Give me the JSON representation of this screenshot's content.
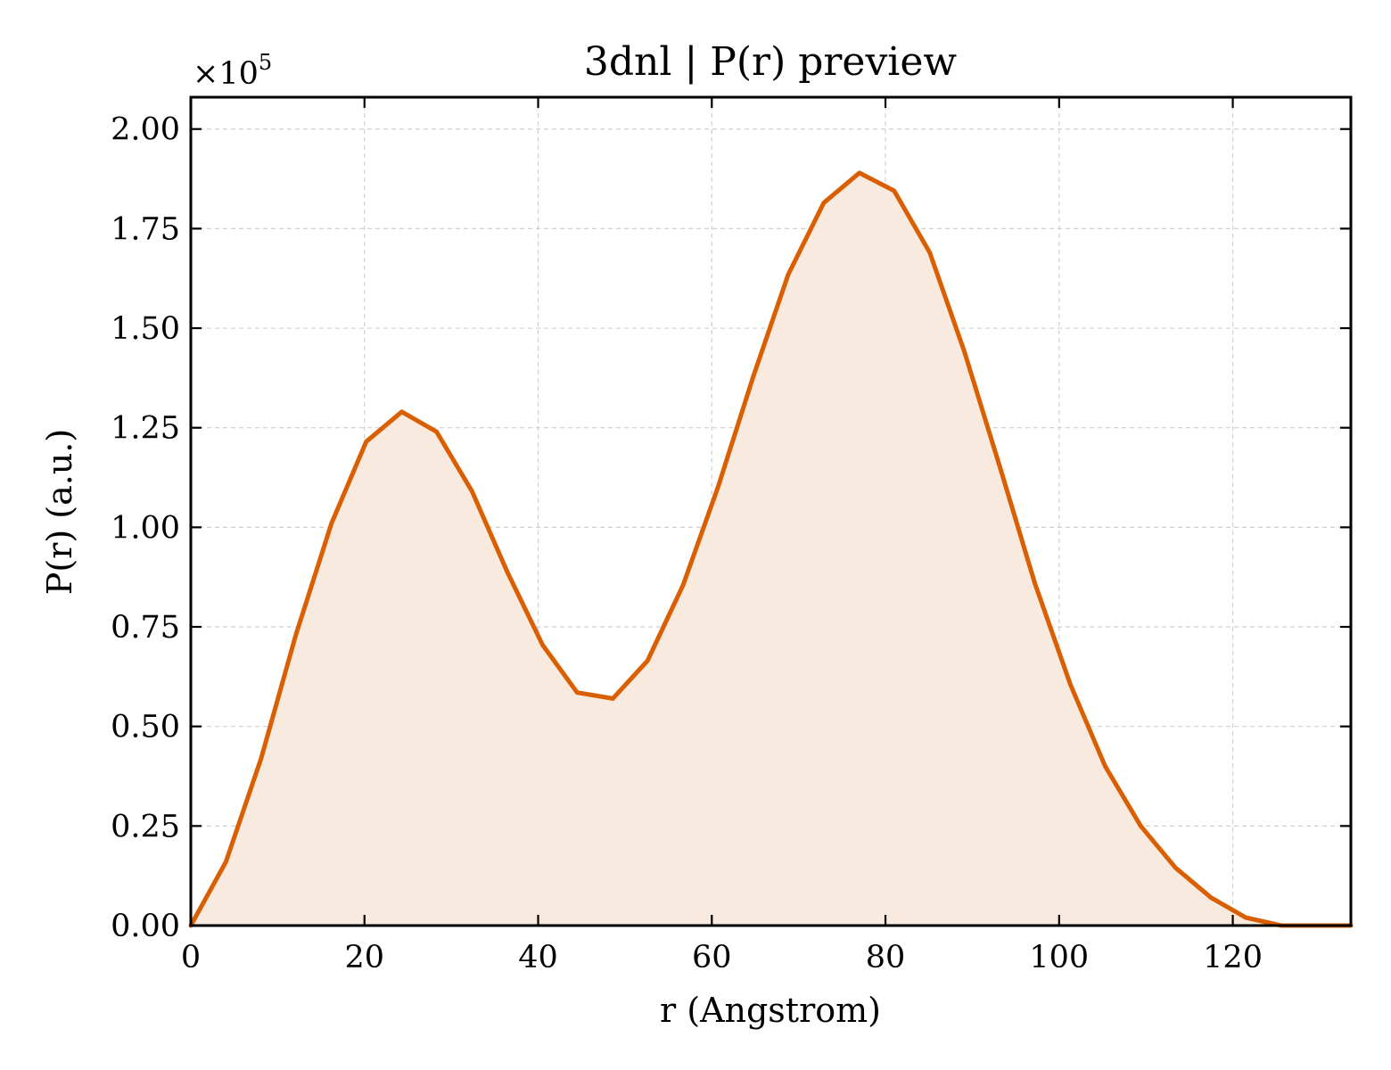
{
  "chart_data": {
    "type": "area",
    "title": "3dnl | P(r) preview",
    "xlabel": "r (Angstrom)",
    "ylabel": "P(r) (a.u.)",
    "y_multiplier": "×10",
    "y_multiplier_exponent": "5",
    "xlim": [
      0,
      133.6
    ],
    "ylim": [
      0,
      2.08
    ],
    "x_ticks": [
      0,
      20,
      40,
      60,
      80,
      100,
      120
    ],
    "x_tick_labels": [
      "0",
      "20",
      "40",
      "60",
      "80",
      "100",
      "120"
    ],
    "y_ticks": [
      0,
      0.25,
      0.5,
      0.75,
      1.0,
      1.25,
      1.5,
      1.75,
      2.0
    ],
    "y_tick_labels": [
      "0.00",
      "0.25",
      "0.50",
      "0.75",
      "1.00",
      "1.25",
      "1.50",
      "1.75",
      "2.00"
    ],
    "grid": true,
    "line_color": "#d95f02",
    "fill_color": "#f9eadf",
    "series": [
      {
        "x": [
          0,
          4.05,
          8.1,
          12.1,
          16.2,
          20.2,
          24.3,
          28.3,
          32.4,
          36.4,
          40.5,
          44.5,
          48.6,
          52.6,
          56.7,
          60.7,
          64.8,
          68.8,
          72.9,
          77.0,
          81.0,
          85.1,
          89.1,
          93.2,
          97.2,
          101.3,
          105.3,
          109.4,
          113.4,
          117.5,
          121.5,
          125.6,
          129.6,
          133.6
        ],
        "y": [
          0.0,
          0.16,
          0.42,
          0.73,
          1.01,
          1.215,
          1.29,
          1.24,
          1.09,
          0.89,
          0.705,
          0.585,
          0.57,
          0.665,
          0.855,
          1.1,
          1.38,
          1.635,
          1.815,
          1.89,
          1.845,
          1.69,
          1.44,
          1.15,
          0.86,
          0.605,
          0.4,
          0.25,
          0.145,
          0.07,
          0.02,
          0.0,
          0.0,
          0.0
        ]
      }
    ]
  }
}
